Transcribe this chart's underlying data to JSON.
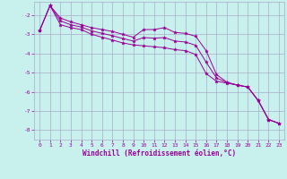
{
  "xlabel": "Windchill (Refroidissement éolien,°C)",
  "bg_color": "#c8f0ec",
  "line_color": "#990099",
  "grid_color": "#aaaacc",
  "xlim": [
    -0.5,
    23.5
  ],
  "ylim": [
    -8.5,
    -1.3
  ],
  "yticks": [
    -8,
    -7,
    -6,
    -5,
    -4,
    -3,
    -2
  ],
  "xticks": [
    0,
    1,
    2,
    3,
    4,
    5,
    6,
    7,
    8,
    9,
    10,
    11,
    12,
    13,
    14,
    15,
    16,
    17,
    18,
    19,
    20,
    21,
    22,
    23
  ],
  "series1_x": [
    0,
    1,
    2,
    3,
    4,
    5,
    6,
    7,
    8,
    9,
    10,
    11,
    12,
    13,
    14,
    15,
    16,
    17,
    18,
    19,
    20,
    21,
    22,
    23
  ],
  "series1_y": [
    -2.8,
    -1.5,
    -2.15,
    -2.35,
    -2.5,
    -2.65,
    -2.75,
    -2.85,
    -3.0,
    -3.15,
    -2.75,
    -2.75,
    -2.65,
    -2.9,
    -2.95,
    -3.1,
    -3.85,
    -5.1,
    -5.5,
    -5.65,
    -5.75,
    -6.45,
    -7.45,
    -7.65
  ],
  "series2_x": [
    0,
    1,
    2,
    3,
    4,
    5,
    6,
    7,
    8,
    9,
    10,
    11,
    12,
    13,
    14,
    15,
    16,
    17,
    18,
    19,
    20,
    21,
    22,
    23
  ],
  "series2_y": [
    -2.8,
    -1.5,
    -2.5,
    -2.65,
    -2.75,
    -3.0,
    -3.15,
    -3.3,
    -3.45,
    -3.55,
    -3.6,
    -3.65,
    -3.7,
    -3.8,
    -3.85,
    -4.05,
    -5.05,
    -5.45,
    -5.55,
    -5.65,
    -5.75,
    -6.45,
    -7.45,
    -7.65
  ],
  "series3_x": [
    0,
    1,
    2,
    3,
    4,
    5,
    6,
    7,
    8,
    9,
    10,
    11,
    12,
    13,
    14,
    15,
    16,
    17,
    18,
    19,
    20,
    21,
    22,
    23
  ],
  "series3_y": [
    -2.8,
    -1.5,
    -2.3,
    -2.5,
    -2.62,
    -2.82,
    -2.95,
    -3.07,
    -3.22,
    -3.35,
    -3.17,
    -3.2,
    -3.17,
    -3.35,
    -3.4,
    -3.57,
    -4.45,
    -5.28,
    -5.52,
    -5.65,
    -5.75,
    -6.45,
    -7.45,
    -7.65
  ]
}
